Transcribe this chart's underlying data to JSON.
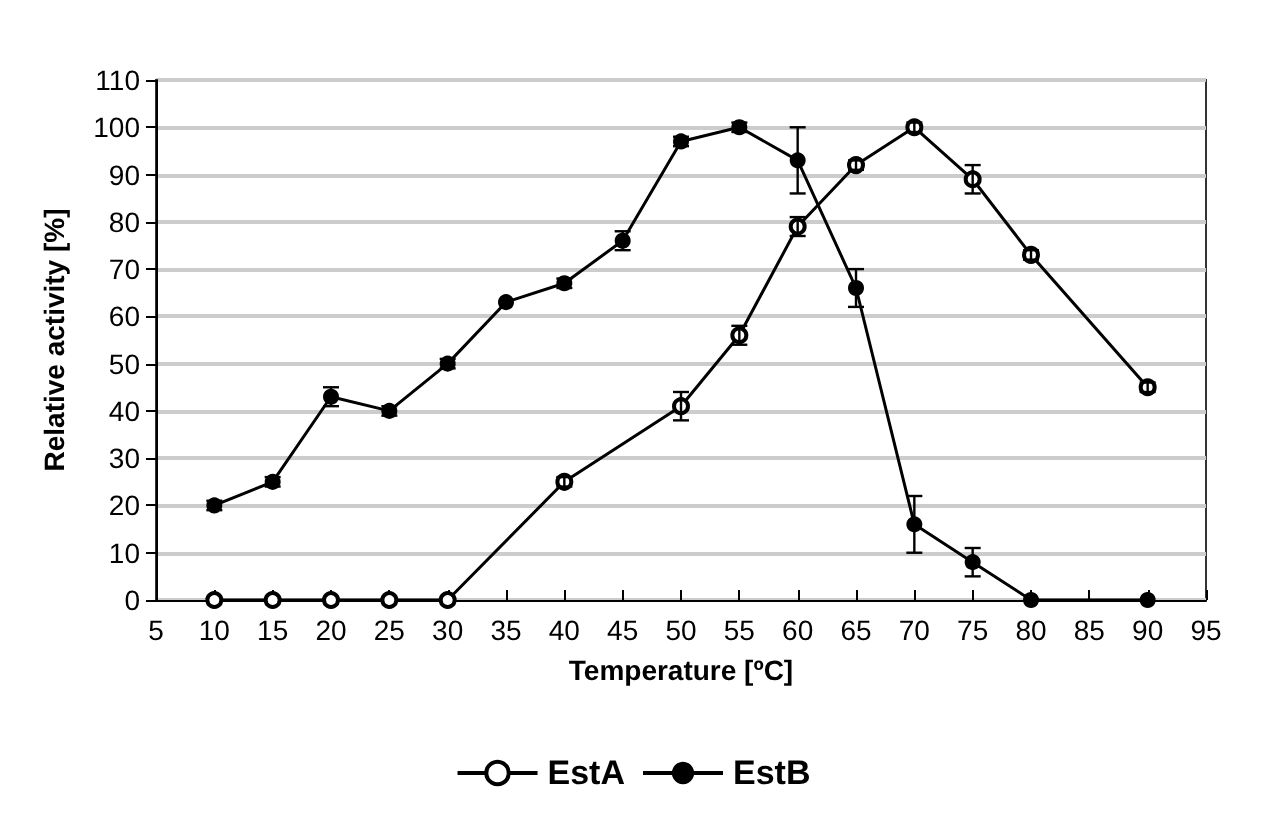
{
  "chart_data": {
    "type": "line",
    "xlabel": "Temperature [ºC]",
    "ylabel": "Relative activity [%]",
    "xlim": [
      5,
      95
    ],
    "xticks": [
      5,
      10,
      15,
      20,
      25,
      30,
      35,
      40,
      45,
      50,
      55,
      60,
      65,
      70,
      75,
      80,
      85,
      90,
      95
    ],
    "ylim": [
      0,
      110
    ],
    "yticks": [
      0,
      10,
      20,
      30,
      40,
      50,
      60,
      70,
      80,
      90,
      100,
      110
    ],
    "grid": "y",
    "legend": "bottom",
    "marker": "circle",
    "line_style": "solid",
    "series": [
      {
        "name": "EstA",
        "color": "#000000",
        "x": [
          10,
          15,
          20,
          25,
          30,
          40,
          50,
          55,
          60,
          65,
          70,
          75,
          80,
          90
        ],
        "values": [
          0,
          0,
          0,
          0,
          0,
          25,
          41,
          56,
          79,
          92,
          100,
          89,
          73,
          45
        ],
        "errors": [
          null,
          null,
          null,
          null,
          null,
          1,
          3,
          2,
          2,
          1,
          1,
          3,
          1,
          1
        ]
      },
      {
        "name": "EstB",
        "color": "#000000",
        "x": [
          10,
          15,
          20,
          25,
          30,
          35,
          40,
          45,
          50,
          55,
          60,
          65,
          70,
          75,
          80,
          90
        ],
        "values": [
          20,
          25,
          43,
          40,
          50,
          63,
          67,
          76,
          97,
          100,
          93,
          66,
          16,
          8,
          0,
          0
        ],
        "errors": [
          1,
          1,
          2,
          1,
          1,
          null,
          1,
          2,
          1,
          1,
          7,
          4,
          6,
          3,
          null,
          null
        ]
      }
    ]
  }
}
